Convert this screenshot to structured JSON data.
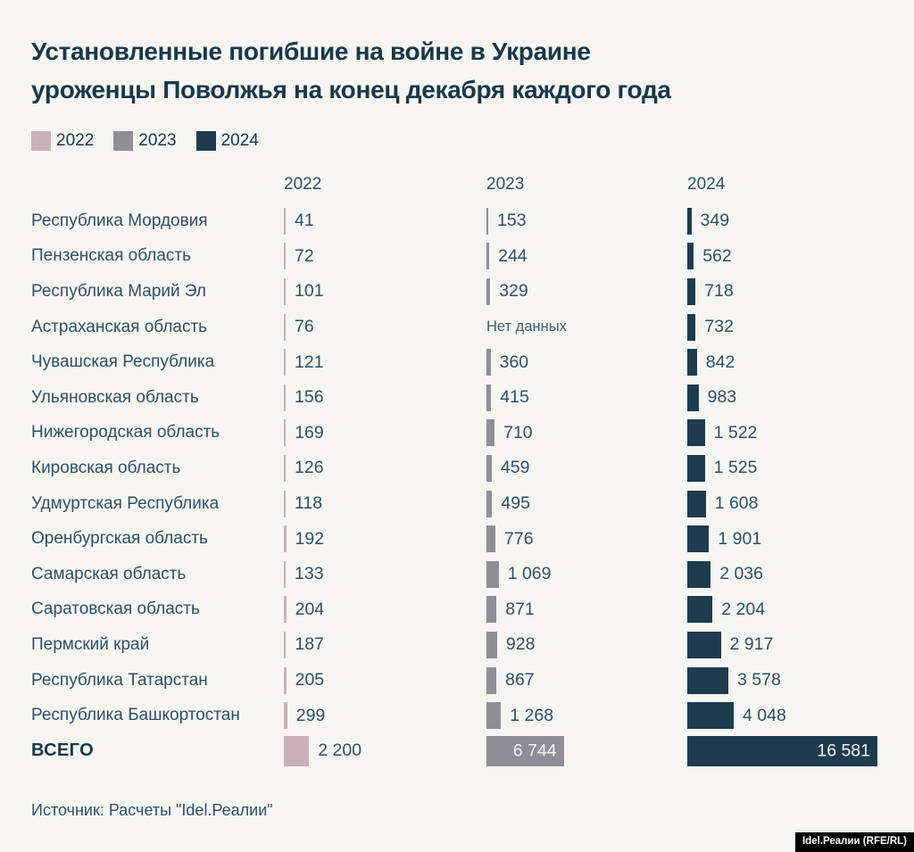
{
  "title": {
    "line1": "Установленные погибшие на войне в Украине",
    "line2": "уроженцы Поволжья на конец декабря каждого года"
  },
  "labels": {
    "no_data": "Нет данных"
  },
  "source": "Источник: Расчеты \"Idel.Реалии\"",
  "badge": "Idel.Реалии (RFE/RL)",
  "colors": {
    "background": "#f7f5f2",
    "title_text": "#17384a",
    "body_text": "#2d5066",
    "y2022": "#c9b1ba",
    "y2023": "#8f8e97",
    "y2024": "#1e3c4e"
  },
  "chart_data": {
    "type": "bar",
    "orientation": "horizontal",
    "title": "Установленные погибшие на войне в Украине уроженцы Поволжья на конец декабря каждого года",
    "legend_position": "top",
    "value_axis_max": 16581,
    "categories": [
      "Республика Мордовия",
      "Пензенская область",
      "Республика Марий Эл",
      "Астраханская область",
      "Чувашская Республика",
      "Ульяновская область",
      "Нижегородская область",
      "Кировская область",
      "Удмуртская Республика",
      "Оренбургская область",
      "Самарская область",
      "Саратовская область",
      "Пермский край",
      "Республика Татарстан",
      "Республика Башкортостан",
      "ВСЕГО"
    ],
    "series": [
      {
        "name": "2022",
        "color": "#c9b1ba",
        "values": [
          41,
          72,
          101,
          76,
          121,
          156,
          169,
          126,
          118,
          192,
          133,
          204,
          187,
          205,
          299,
          2200
        ],
        "display": [
          "41",
          "72",
          "101",
          "76",
          "121",
          "156",
          "169",
          "126",
          "118",
          "192",
          "133",
          "204",
          "187",
          "205",
          "299",
          "2 200"
        ]
      },
      {
        "name": "2023",
        "color": "#8f8e97",
        "values": [
          153,
          244,
          329,
          null,
          360,
          415,
          710,
          459,
          495,
          776,
          1069,
          871,
          928,
          867,
          1268,
          6744
        ],
        "display": [
          "153",
          "244",
          "329",
          null,
          "360",
          "415",
          "710",
          "459",
          "495",
          "776",
          "1 069",
          "871",
          "928",
          "867",
          "1 268",
          "6 744"
        ]
      },
      {
        "name": "2024",
        "color": "#1e3c4e",
        "values": [
          349,
          562,
          718,
          732,
          842,
          983,
          1522,
          1525,
          1608,
          1901,
          2036,
          2204,
          2917,
          3578,
          4048,
          16581
        ],
        "display": [
          "349",
          "562",
          "718",
          "732",
          "842",
          "983",
          "1 522",
          "1 525",
          "1 608",
          "1 901",
          "2 036",
          "2 204",
          "2 917",
          "3 578",
          "4 048",
          "16 581"
        ]
      }
    ]
  }
}
